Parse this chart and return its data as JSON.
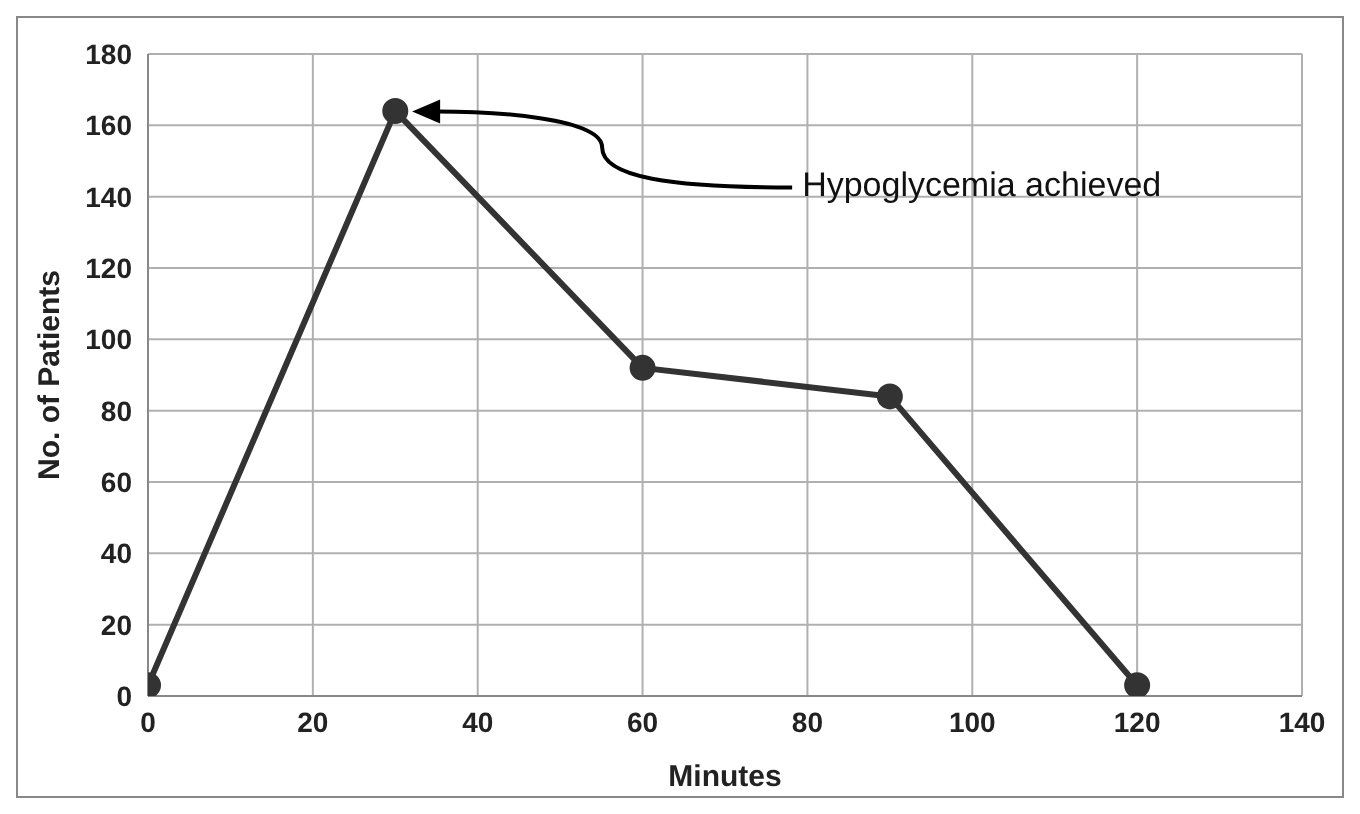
{
  "chart_data": {
    "type": "line",
    "xlabel": "Minutes",
    "ylabel": "No. of Patients",
    "x": [
      0,
      30,
      60,
      90,
      120
    ],
    "series": [
      {
        "color": "#333333",
        "values": [
          3,
          164,
          92,
          84,
          3
        ]
      }
    ],
    "xlim": [
      0,
      140
    ],
    "xticks": [
      0,
      20,
      40,
      60,
      80,
      100,
      120,
      140
    ],
    "ylim": [
      0,
      180
    ],
    "yticks": [
      0,
      20,
      40,
      60,
      80,
      100,
      120,
      140,
      160,
      180
    ],
    "grid": true,
    "marker": "circle",
    "line_style": "solid",
    "legend": false,
    "annotations": [
      "Hypoglycemia achieved"
    ]
  }
}
